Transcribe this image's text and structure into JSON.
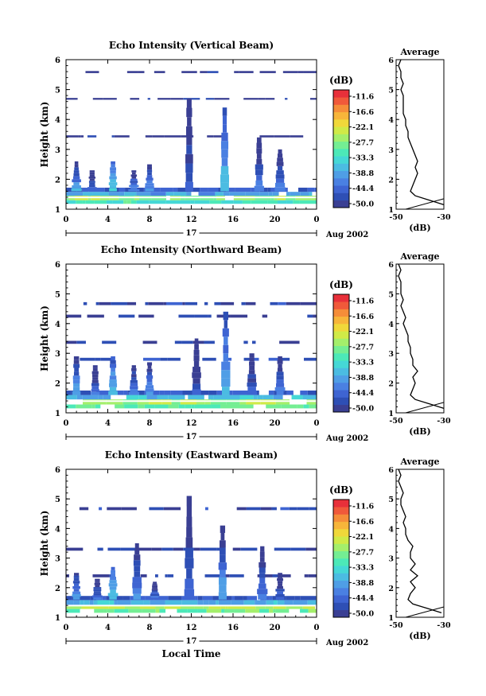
{
  "colors": {
    "scale": [
      "#3a3f93",
      "#2e4fb5",
      "#3e64d2",
      "#4a80e2",
      "#4f9ee6",
      "#4bbce2",
      "#45d8d6",
      "#4ce9b8",
      "#74ee93",
      "#a4ef6b",
      "#d0ea47",
      "#f0d83a",
      "#f7b53a",
      "#f58d39",
      "#f0593a",
      "#e8303a"
    ],
    "average_line": "#000000",
    "frame": "#000000"
  },
  "chart_data": [
    {
      "type": "heatmap",
      "title": "Echo Intensity (Vertical Beam)",
      "ylabel": "Height (km)",
      "xlim": [
        0,
        24
      ],
      "ylim": [
        1,
        6
      ],
      "xticks": [
        "0",
        "4",
        "8",
        "12",
        "16",
        "20",
        "0"
      ],
      "yticks": [
        "1",
        "2",
        "3",
        "4",
        "5",
        "6"
      ],
      "date_label": "17",
      "month_label": "Aug 2002",
      "colorbar": {
        "unit": "(dB)",
        "ticks": [
          "-11.6",
          "-16.6",
          "-22.1",
          "-27.7",
          "-33.3",
          "-38.8",
          "-44.4",
          "-50.0"
        ],
        "range": [
          -50,
          -10
        ]
      },
      "layers": [
        {
          "y0": 1.18,
          "y1": 1.3,
          "value": -32
        },
        {
          "y0": 1.3,
          "y1": 1.45,
          "value": -27
        },
        {
          "y0": 1.45,
          "y1": 1.58,
          "value": -38
        },
        {
          "y0": 1.58,
          "y1": 1.72,
          "value": -45
        },
        {
          "y0": 3.4,
          "y1": 3.47,
          "value": -48
        },
        {
          "y0": 4.66,
          "y1": 4.72,
          "value": -48
        },
        {
          "y0": 5.55,
          "y1": 5.62,
          "value": -49
        }
      ],
      "bursts": [
        {
          "t": 1.0,
          "top": 2.6,
          "value": -38
        },
        {
          "t": 2.5,
          "top": 2.3,
          "value": -42
        },
        {
          "t": 4.5,
          "top": 2.6,
          "value": -34
        },
        {
          "t": 6.5,
          "top": 2.3,
          "value": -40
        },
        {
          "t": 8.0,
          "top": 2.5,
          "value": -38
        },
        {
          "t": 11.8,
          "top": 4.7,
          "value": -43
        },
        {
          "t": 15.2,
          "top": 4.4,
          "value": -36
        },
        {
          "t": 18.5,
          "top": 3.4,
          "value": -42
        },
        {
          "t": 20.5,
          "top": 3.0,
          "value": -41
        }
      ],
      "average": {
        "title": "Average",
        "xlabel": "(dB)",
        "xticks": [
          "-50",
          "-30"
        ],
        "xlim": [
          -50,
          -30
        ],
        "heights": [
          1.15,
          1.3,
          1.45,
          1.6,
          1.8,
          2.0,
          2.2,
          2.4,
          2.6,
          2.8,
          3.0,
          3.2,
          3.4,
          3.6,
          3.8,
          4.0,
          4.2,
          4.4,
          4.6,
          4.8,
          5.0,
          5.2,
          5.4,
          5.6,
          5.8,
          6.0
        ],
        "values": [
          -30,
          -36,
          -42,
          -44,
          -43,
          -42,
          -41,
          -42,
          -41,
          -42,
          -43,
          -44,
          -45,
          -45,
          -46,
          -46,
          -47,
          -47,
          -47,
          -47,
          -48,
          -47,
          -48,
          -48,
          -49,
          -48
        ]
      }
    },
    {
      "type": "heatmap",
      "title": "Echo Intensity (Northward Beam)",
      "ylabel": "Height (km)",
      "xlim": [
        0,
        24
      ],
      "ylim": [
        1,
        6
      ],
      "xticks": [
        "0",
        "4",
        "8",
        "12",
        "16",
        "20",
        "0"
      ],
      "yticks": [
        "1",
        "2",
        "3",
        "4",
        "5",
        "6"
      ],
      "date_label": "17",
      "month_label": "Aug 2002",
      "colorbar": {
        "unit": "(dB)",
        "ticks": [
          "-11.6",
          "-16.6",
          "-22.1",
          "-27.7",
          "-33.3",
          "-38.8",
          "-44.4",
          "-50.0"
        ],
        "range": [
          -50,
          -10
        ]
      },
      "layers": [
        {
          "y0": 1.15,
          "y1": 1.28,
          "value": -30
        },
        {
          "y0": 1.28,
          "y1": 1.45,
          "value": -26
        },
        {
          "y0": 1.45,
          "y1": 1.6,
          "value": -37
        },
        {
          "y0": 1.6,
          "y1": 1.75,
          "value": -45
        },
        {
          "y0": 2.75,
          "y1": 2.85,
          "value": -47
        },
        {
          "y0": 3.32,
          "y1": 3.42,
          "value": -48
        },
        {
          "y0": 4.2,
          "y1": 4.3,
          "value": -48
        },
        {
          "y0": 4.62,
          "y1": 4.72,
          "value": -47
        }
      ],
      "bursts": [
        {
          "t": 1.0,
          "top": 2.9,
          "value": -38
        },
        {
          "t": 2.8,
          "top": 2.6,
          "value": -42
        },
        {
          "t": 4.5,
          "top": 2.9,
          "value": -35
        },
        {
          "t": 6.5,
          "top": 2.6,
          "value": -40
        },
        {
          "t": 8.0,
          "top": 2.7,
          "value": -39
        },
        {
          "t": 12.5,
          "top": 3.5,
          "value": -44
        },
        {
          "t": 15.3,
          "top": 4.4,
          "value": -36
        },
        {
          "t": 17.8,
          "top": 3.0,
          "value": -43
        },
        {
          "t": 20.5,
          "top": 2.9,
          "value": -42
        }
      ],
      "average": {
        "title": "Average",
        "xlabel": "(dB)",
        "xticks": [
          "-50",
          "-30"
        ],
        "xlim": [
          -50,
          -30
        ],
        "heights": [
          1.15,
          1.3,
          1.45,
          1.6,
          1.8,
          2.0,
          2.2,
          2.4,
          2.6,
          2.8,
          3.0,
          3.2,
          3.4,
          3.6,
          3.8,
          4.0,
          4.2,
          4.4,
          4.6,
          4.8,
          5.0,
          5.2,
          5.4,
          5.6,
          5.8,
          6.0
        ],
        "values": [
          -30,
          -36,
          -42,
          -44,
          -43,
          -42,
          -43,
          -41,
          -43,
          -43,
          -44,
          -44,
          -45,
          -45,
          -46,
          -47,
          -46,
          -47,
          -48,
          -47,
          -48,
          -48,
          -48,
          -49,
          -48,
          -49
        ]
      }
    },
    {
      "type": "heatmap",
      "title": "Echo Intensity (Eastward Beam)",
      "ylabel": "Height (km)",
      "xlabel": "Local Time",
      "xlim": [
        0,
        24
      ],
      "ylim": [
        1,
        6
      ],
      "xticks": [
        "0",
        "4",
        "8",
        "12",
        "16",
        "20",
        "0"
      ],
      "yticks": [
        "1",
        "2",
        "3",
        "4",
        "5",
        "6"
      ],
      "date_label": "17",
      "month_label": "Aug 2002",
      "colorbar": {
        "unit": "(dB)",
        "ticks": [
          "-11.6",
          "-16.6",
          "-22.1",
          "-27.7",
          "-33.3",
          "-38.8",
          "-44.4",
          "-50.0"
        ],
        "range": [
          -50,
          -10
        ]
      },
      "layers": [
        {
          "y0": 1.15,
          "y1": 1.28,
          "value": -29
        },
        {
          "y0": 1.28,
          "y1": 1.42,
          "value": -25
        },
        {
          "y0": 1.42,
          "y1": 1.58,
          "value": -37
        },
        {
          "y0": 1.58,
          "y1": 1.72,
          "value": -45
        },
        {
          "y0": 2.35,
          "y1": 2.45,
          "value": -48
        },
        {
          "y0": 3.25,
          "y1": 3.35,
          "value": -47
        },
        {
          "y0": 4.62,
          "y1": 4.72,
          "value": -47
        }
      ],
      "bursts": [
        {
          "t": 1.0,
          "top": 2.5,
          "value": -38
        },
        {
          "t": 3.0,
          "top": 2.3,
          "value": -42
        },
        {
          "t": 4.5,
          "top": 2.7,
          "value": -34
        },
        {
          "t": 6.8,
          "top": 3.5,
          "value": -40
        },
        {
          "t": 8.5,
          "top": 2.2,
          "value": -42
        },
        {
          "t": 11.8,
          "top": 5.1,
          "value": -43
        },
        {
          "t": 15.0,
          "top": 4.1,
          "value": -38
        },
        {
          "t": 18.8,
          "top": 3.4,
          "value": -42
        },
        {
          "t": 20.5,
          "top": 2.5,
          "value": -43
        }
      ],
      "average": {
        "title": "Average",
        "xlabel": "(dB)",
        "xticks": [
          "-50",
          "-30"
        ],
        "xlim": [
          -50,
          -30
        ],
        "heights": [
          1.15,
          1.3,
          1.45,
          1.6,
          1.8,
          2.0,
          2.2,
          2.4,
          2.6,
          2.8,
          3.0,
          3.2,
          3.4,
          3.6,
          3.8,
          4.0,
          4.2,
          4.4,
          4.6,
          4.8,
          5.0,
          5.2,
          5.4,
          5.6,
          5.8,
          6.0
        ],
        "values": [
          -31,
          -37,
          -43,
          -45,
          -44,
          -42,
          -44,
          -41,
          -44,
          -42,
          -44,
          -44,
          -43,
          -45,
          -46,
          -46,
          -47,
          -46,
          -47,
          -48,
          -48,
          -47,
          -48,
          -49,
          -48,
          -49
        ]
      }
    }
  ]
}
